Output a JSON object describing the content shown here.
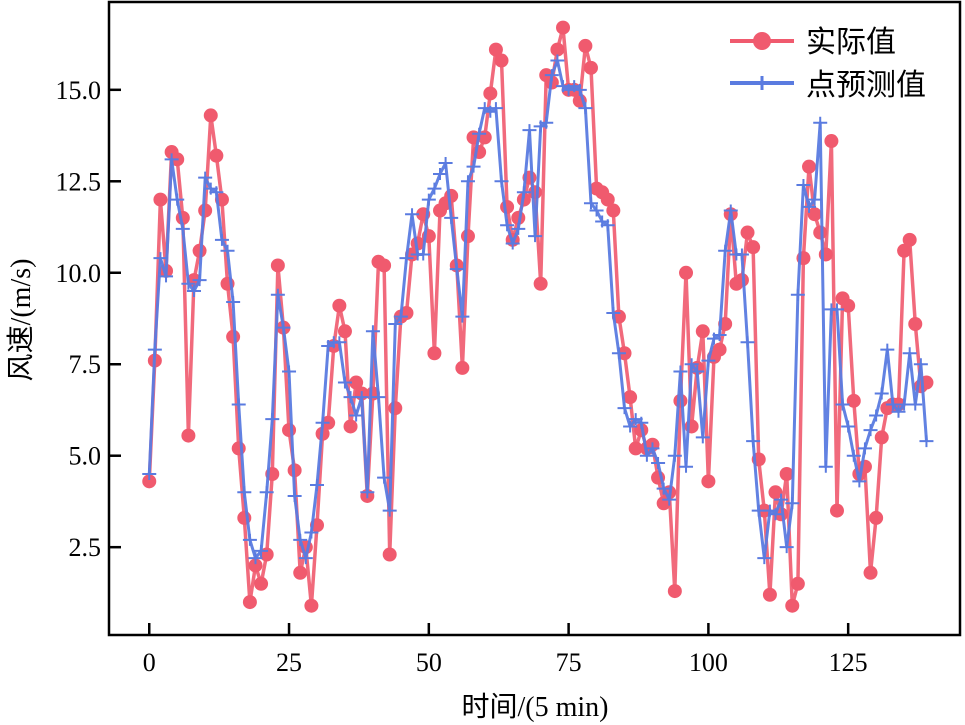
{
  "chart_data": {
    "type": "line",
    "title": "",
    "xlabel": "时间/(5 min)",
    "ylabel": "风速/(m/s)",
    "xlim": [
      -7.2,
      145
    ],
    "ylim": [
      0.1,
      17.4
    ],
    "xticks": [
      0,
      25,
      50,
      75,
      100,
      125
    ],
    "xtick_labels": [
      "0",
      "25",
      "50",
      "75",
      "100",
      "125"
    ],
    "yticks": [
      2.5,
      5.0,
      7.5,
      10.0,
      12.5,
      15.0
    ],
    "ytick_labels": [
      "2.5",
      "5.0",
      "7.5",
      "10.0",
      "12.5",
      "15.0"
    ],
    "grid": false,
    "legend_position": "top-right",
    "series": [
      {
        "name": "实际值",
        "color": "#f05a6e",
        "marker": "circle",
        "values": [
          4.3,
          7.6,
          12.0,
          10.05,
          13.3,
          13.1,
          11.5,
          5.55,
          9.8,
          10.6,
          11.7,
          14.3,
          13.2,
          12.0,
          9.7,
          8.25,
          5.2,
          3.3,
          1.0,
          2.0,
          1.5,
          2.3,
          4.5,
          10.2,
          8.5,
          5.7,
          4.6,
          1.8,
          2.5,
          0.9,
          3.1,
          5.6,
          5.9,
          8.0,
          9.1,
          8.4,
          5.8,
          7.0,
          6.7,
          3.9,
          6.7,
          10.3,
          10.2,
          2.3,
          6.3,
          8.8,
          8.9,
          10.5,
          10.8,
          11.6,
          11.0,
          7.8,
          11.7,
          11.9,
          12.1,
          10.2,
          7.4,
          11.0,
          13.7,
          13.3,
          13.7,
          14.9,
          16.1,
          15.8,
          11.8,
          10.9,
          11.5,
          12.0,
          12.6,
          12.2,
          9.7,
          15.4,
          15.2,
          16.1,
          16.7,
          15.0,
          15.0,
          14.7,
          16.2,
          15.6,
          12.3,
          12.2,
          12.0,
          11.7,
          8.8,
          7.8,
          6.6,
          5.2,
          5.7,
          5.2,
          5.3,
          4.4,
          3.7,
          4.0,
          1.3,
          6.5,
          10.0,
          5.8,
          7.4,
          8.4,
          4.3,
          7.7,
          7.9,
          8.6,
          11.6,
          9.7,
          9.8,
          11.1,
          10.7,
          4.9,
          3.5,
          1.2,
          4.0,
          3.4,
          4.5,
          0.9,
          1.5,
          10.4,
          12.9,
          11.6,
          11.1,
          10.5,
          13.6,
          3.5,
          9.3,
          9.1,
          6.5,
          4.5,
          4.7,
          1.8,
          3.3,
          5.5,
          6.3,
          6.4,
          6.4,
          10.6,
          10.9,
          8.6,
          6.9,
          7.0
        ]
      },
      {
        "name": "点预测值",
        "color": "#5a7be0",
        "marker": "plus",
        "values": [
          4.5,
          7.9,
          10.4,
          9.9,
          13.1,
          12.0,
          11.2,
          9.7,
          9.5,
          9.8,
          12.6,
          12.3,
          12.2,
          10.9,
          10.6,
          9.2,
          6.4,
          4.0,
          2.7,
          2.2,
          2.4,
          4.0,
          6.0,
          9.4,
          8.5,
          7.3,
          3.9,
          2.7,
          2.2,
          2.9,
          4.2,
          5.9,
          8.0,
          8.1,
          8.1,
          7.0,
          6.6,
          6.1,
          6.6,
          4.0,
          8.4,
          6.6,
          4.4,
          3.5,
          8.6,
          8.8,
          10.4,
          11.6,
          10.5,
          10.5,
          12.0,
          12.3,
          12.7,
          13.0,
          11.5,
          10.1,
          8.8,
          12.5,
          12.9,
          13.8,
          14.5,
          14.4,
          14.5,
          12.5,
          11.3,
          10.8,
          11.2,
          12.2,
          13.9,
          11.0,
          14.0,
          14.1,
          15.4,
          15.8,
          15.1,
          15.0,
          15.1,
          15.0,
          14.5,
          11.9,
          11.7,
          11.4,
          11.3,
          8.9,
          7.8,
          6.3,
          5.8,
          6.0,
          5.9,
          5.0,
          5.2,
          4.8,
          4.1,
          3.8,
          5.0,
          7.3,
          4.7,
          7.5,
          7.3,
          5.5,
          7.6,
          8.2,
          8.3,
          10.6,
          11.7,
          10.5,
          10.5,
          8.1,
          5.4,
          3.5,
          2.2,
          3.5,
          3.4,
          3.8,
          2.5,
          3.7,
          9.4,
          12.4,
          11.8,
          12.0,
          14.1,
          4.7,
          9.0,
          9.0,
          6.4,
          5.8,
          5.0,
          4.3,
          5.2,
          5.7,
          6.1,
          6.7,
          7.9,
          6.4,
          6.2,
          6.4,
          7.8,
          6.4,
          7.5,
          5.4
        ]
      }
    ]
  }
}
